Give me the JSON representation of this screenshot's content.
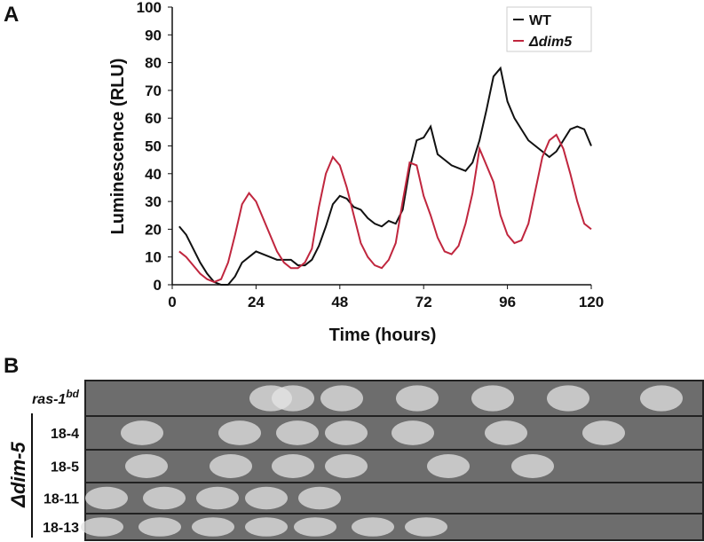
{
  "panel_a": {
    "label": "A"
  },
  "chart_data": {
    "type": "line",
    "x_label": "Time (hours)",
    "y_label": "Luminescence (RLU)",
    "x": [
      2,
      4,
      6,
      8,
      10,
      12,
      14,
      16,
      18,
      20,
      22,
      24,
      26,
      28,
      30,
      32,
      34,
      36,
      38,
      40,
      42,
      44,
      46,
      48,
      50,
      52,
      54,
      56,
      58,
      60,
      62,
      64,
      66,
      68,
      70,
      72,
      74,
      76,
      78,
      80,
      82,
      84,
      86,
      88,
      90,
      92,
      94,
      96,
      98,
      100,
      102,
      104,
      106,
      108,
      110,
      112,
      114,
      116,
      118,
      120
    ],
    "series": [
      {
        "name": "WT",
        "color": "#111111",
        "values": [
          21,
          18,
          13,
          8,
          4,
          1,
          0,
          0,
          3,
          8,
          10,
          12,
          11,
          10,
          9,
          9,
          9,
          7,
          7,
          9,
          14,
          21,
          29,
          32,
          31,
          28,
          27,
          24,
          22,
          21,
          23,
          22,
          27,
          42,
          52,
          53,
          57,
          47,
          45,
          43,
          42,
          41,
          44,
          52,
          63,
          75,
          78,
          66,
          60,
          56,
          52,
          50,
          48,
          46,
          48,
          52,
          56,
          57,
          56,
          50
        ]
      },
      {
        "name": "Δdim5",
        "color": "#c0263e",
        "values": [
          12,
          10,
          7,
          4,
          2,
          1,
          2,
          8,
          18,
          29,
          33,
          30,
          24,
          18,
          12,
          8,
          6,
          6,
          8,
          13,
          28,
          40,
          46,
          43,
          35,
          25,
          15,
          10,
          7,
          6,
          9,
          15,
          30,
          44,
          43,
          32,
          25,
          17,
          12,
          11,
          14,
          22,
          33,
          49,
          43,
          37,
          25,
          18,
          15,
          16,
          22,
          34,
          46,
          52,
          54,
          49,
          40,
          30,
          22,
          20
        ]
      }
    ],
    "xlim": [
      0,
      120
    ],
    "xticks": [
      0,
      24,
      48,
      72,
      96,
      120
    ],
    "ylim": [
      0,
      100
    ],
    "yticks": [
      0,
      10,
      20,
      30,
      40,
      50,
      60,
      70,
      80,
      90,
      100
    ],
    "legend": "top-right"
  },
  "panel_b": {
    "label": "B",
    "group": "Δdim-5",
    "rows": [
      {
        "text": "ras-1",
        "sup": "bd"
      },
      {
        "text": "18-4"
      },
      {
        "text": "18-5"
      },
      {
        "text": "18-11"
      },
      {
        "text": "18-13"
      }
    ]
  }
}
